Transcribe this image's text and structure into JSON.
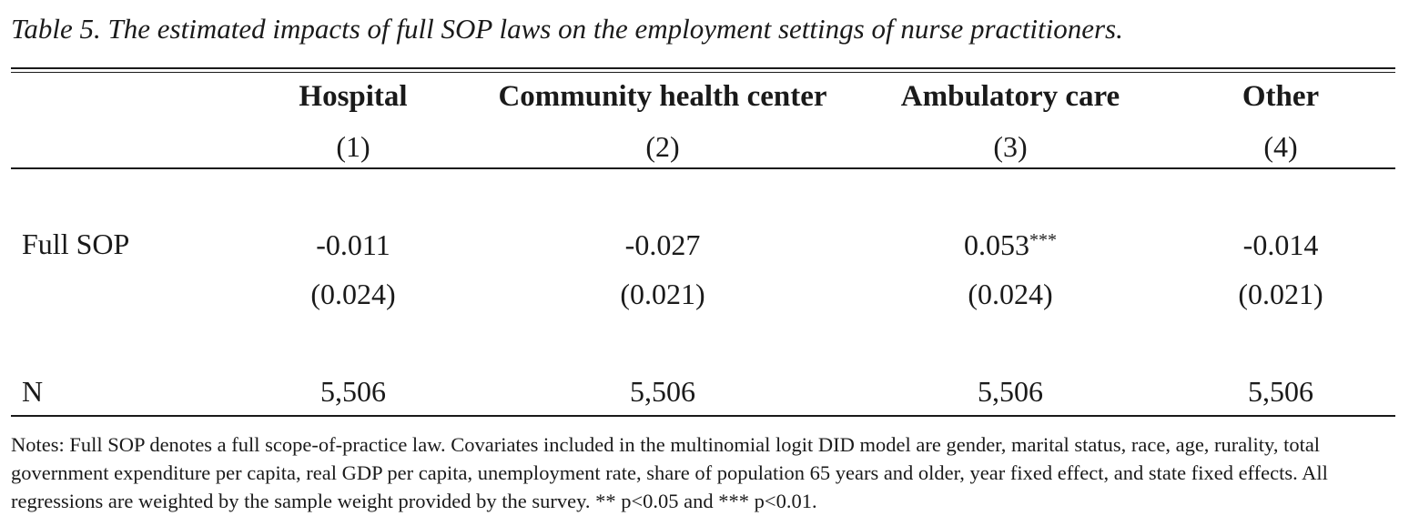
{
  "caption": "Table 5. The estimated impacts of full SOP laws on the employment settings of nurse practitioners.",
  "columns": [
    {
      "name": "Hospital",
      "number": "(1)"
    },
    {
      "name": "Community health center",
      "number": "(2)"
    },
    {
      "name": "Ambulatory care",
      "number": "(3)"
    },
    {
      "name": "Other",
      "number": "(4)"
    }
  ],
  "rows": {
    "full_sop": {
      "label": "Full SOP",
      "coefficients": [
        {
          "value": "-0.011",
          "stars": ""
        },
        {
          "value": "-0.027",
          "stars": ""
        },
        {
          "value": "0.053",
          "stars": "***"
        },
        {
          "value": "-0.014",
          "stars": ""
        }
      ],
      "std_errors": [
        "(0.024)",
        "(0.021)",
        "(0.024)",
        "(0.021)"
      ]
    },
    "n": {
      "label": "N",
      "values": [
        "5,506",
        "5,506",
        "5,506",
        "5,506"
      ]
    }
  },
  "notes": "Notes: Full SOP denotes a full scope-of-practice law. Covariates included in the multinomial logit DID model are gender, marital status, race, age, rurality, total government expenditure per capita, real GDP per capita, unemployment rate, share of population 65 years and older, year fixed effect, and state fixed effects. All regressions are weighted by the sample weight provided by the survey. ** p<0.05 and *** p<0.01."
}
